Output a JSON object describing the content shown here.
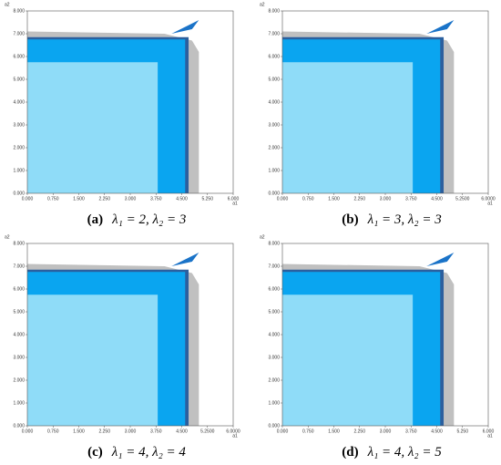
{
  "chart_data": [
    {
      "type": "region",
      "caption_label": "(a)",
      "caption": "λ₁ = 2, λ₂ = 3",
      "xlabel": "a1",
      "ylabel": "a2",
      "xlim": [
        0,
        6
      ],
      "ylim": [
        0,
        8
      ],
      "xticks": [
        {
          "value": 0,
          "label": "0.000"
        },
        {
          "value": 0.75,
          "label": "0.750"
        },
        {
          "value": 1.5,
          "label": "1.500"
        },
        {
          "value": 2.25,
          "label": "2.250"
        },
        {
          "value": 3,
          "label": "3.000"
        },
        {
          "value": 3.75,
          "label": "3.750"
        },
        {
          "value": 4.5,
          "label": "4.500"
        },
        {
          "value": 5.25,
          "label": "5.250"
        },
        {
          "value": 6,
          "label": "6.000"
        }
      ],
      "yticks": [
        {
          "value": 0,
          "label": "0.000"
        },
        {
          "value": 1,
          "label": "1.000"
        },
        {
          "value": 2,
          "label": "2.000"
        },
        {
          "value": 3,
          "label": "3.000"
        },
        {
          "value": 4,
          "label": "4.000"
        },
        {
          "value": 5,
          "label": "5.000"
        },
        {
          "value": 6,
          "label": "6.000"
        },
        {
          "value": 7,
          "label": "7.000"
        },
        {
          "value": 8,
          "label": "8.000"
        }
      ],
      "regions": [
        {
          "color": "#c0c0c0",
          "x": [
            0,
            0,
            4.0,
            4.8,
            5.0,
            5.0
          ],
          "y": [
            0,
            7.1,
            7.0,
            6.7,
            6.2,
            0
          ]
        },
        {
          "color": "#2b5f9e",
          "x": [
            0,
            0,
            4.7,
            4.7
          ],
          "y": [
            0,
            6.85,
            6.85,
            0
          ]
        },
        {
          "color": "#0aa5f0",
          "x": [
            0,
            0,
            4.6,
            4.6
          ],
          "y": [
            0,
            6.75,
            6.75,
            0
          ]
        },
        {
          "color": "#8fdcf8",
          "x": [
            0,
            0,
            3.8,
            3.8
          ],
          "y": [
            0,
            5.75,
            5.75,
            0
          ]
        },
        {
          "color": "#1a73c8",
          "x": [
            4.2,
            4.8,
            5.0,
            4.6
          ],
          "y": [
            7.0,
            7.2,
            7.6,
            7.3
          ]
        }
      ]
    },
    {
      "type": "region",
      "caption_label": "(b)",
      "caption": "λ₁ = 3, λ₂ = 3",
      "xlabel": "a1",
      "ylabel": "a2",
      "xlim": [
        0,
        6
      ],
      "ylim": [
        0,
        8
      ],
      "xticks": [
        {
          "value": 0,
          "label": "0.000"
        },
        {
          "value": 0.75,
          "label": "0.750"
        },
        {
          "value": 1.5,
          "label": "1.500"
        },
        {
          "value": 2.25,
          "label": "2.250"
        },
        {
          "value": 3,
          "label": "3.000"
        },
        {
          "value": 3.75,
          "label": "3.750"
        },
        {
          "value": 4.5,
          "label": "4.500"
        },
        {
          "value": 5.25,
          "label": "5.2500"
        },
        {
          "value": 6,
          "label": "6.0000"
        }
      ],
      "yticks": [
        {
          "value": 0,
          "label": "0.000"
        },
        {
          "value": 1,
          "label": "1.000"
        },
        {
          "value": 2,
          "label": "2.000"
        },
        {
          "value": 3,
          "label": "3.000"
        },
        {
          "value": 4,
          "label": "4.000"
        },
        {
          "value": 5,
          "label": "5.000"
        },
        {
          "value": 6,
          "label": "6.000"
        },
        {
          "value": 7,
          "label": "7.000"
        },
        {
          "value": 8,
          "label": "8.000"
        }
      ],
      "regions": [
        {
          "color": "#c0c0c0",
          "x": [
            0,
            0,
            4.0,
            4.8,
            5.0,
            5.0
          ],
          "y": [
            0,
            7.1,
            7.0,
            6.7,
            6.2,
            0
          ]
        },
        {
          "color": "#2b5f9e",
          "x": [
            0,
            0,
            4.7,
            4.7
          ],
          "y": [
            0,
            6.85,
            6.85,
            0
          ]
        },
        {
          "color": "#0aa5f0",
          "x": [
            0,
            0,
            4.6,
            4.6
          ],
          "y": [
            0,
            6.75,
            6.75,
            0
          ]
        },
        {
          "color": "#8fdcf8",
          "x": [
            0,
            0,
            3.8,
            3.8
          ],
          "y": [
            0,
            5.75,
            5.75,
            0
          ]
        },
        {
          "color": "#1a73c8",
          "x": [
            4.2,
            4.8,
            5.0,
            4.6
          ],
          "y": [
            7.0,
            7.2,
            7.6,
            7.3
          ]
        }
      ]
    },
    {
      "type": "region",
      "caption_label": "(c)",
      "caption": "λ₁ = 4, λ₂ = 4",
      "xlabel": "a1",
      "ylabel": "a2",
      "xlim": [
        0,
        6
      ],
      "ylim": [
        0,
        8
      ],
      "xticks": [
        {
          "value": 0,
          "label": "0.000"
        },
        {
          "value": 0.75,
          "label": "0.750"
        },
        {
          "value": 1.5,
          "label": "1.500"
        },
        {
          "value": 2.25,
          "label": "2.250"
        },
        {
          "value": 3,
          "label": "3.000"
        },
        {
          "value": 3.75,
          "label": "3.750"
        },
        {
          "value": 4.5,
          "label": "4.500"
        },
        {
          "value": 5.25,
          "label": "5.2500"
        },
        {
          "value": 6,
          "label": "6.0000"
        }
      ],
      "yticks": [
        {
          "value": 0,
          "label": "0.000"
        },
        {
          "value": 1,
          "label": "1.000"
        },
        {
          "value": 2,
          "label": "2.000"
        },
        {
          "value": 3,
          "label": "3.000"
        },
        {
          "value": 4,
          "label": "4.000"
        },
        {
          "value": 5,
          "label": "5.000"
        },
        {
          "value": 6,
          "label": "6.000"
        },
        {
          "value": 7,
          "label": "7.000"
        },
        {
          "value": 8,
          "label": "8.000"
        }
      ],
      "regions": [
        {
          "color": "#c0c0c0",
          "x": [
            0,
            0,
            4.0,
            4.8,
            5.0,
            5.0
          ],
          "y": [
            0,
            7.1,
            7.0,
            6.7,
            6.2,
            0
          ]
        },
        {
          "color": "#2b5f9e",
          "x": [
            0,
            0,
            4.7,
            4.7
          ],
          "y": [
            0,
            6.85,
            6.85,
            0
          ]
        },
        {
          "color": "#0aa5f0",
          "x": [
            0,
            0,
            4.6,
            4.6
          ],
          "y": [
            0,
            6.75,
            6.75,
            0
          ]
        },
        {
          "color": "#8fdcf8",
          "x": [
            0,
            0,
            3.8,
            3.8
          ],
          "y": [
            0,
            5.75,
            5.75,
            0
          ]
        },
        {
          "color": "#1a73c8",
          "x": [
            4.2,
            4.8,
            5.0,
            4.6
          ],
          "y": [
            7.0,
            7.2,
            7.6,
            7.3
          ]
        }
      ]
    },
    {
      "type": "region",
      "caption_label": "(d)",
      "caption": "λ₁ = 4, λ₂ = 5",
      "xlabel": "a1",
      "ylabel": "a2",
      "xlim": [
        0,
        6
      ],
      "ylim": [
        0,
        8
      ],
      "xticks": [
        {
          "value": 0,
          "label": "0.000"
        },
        {
          "value": 0.75,
          "label": "0.750"
        },
        {
          "value": 1.5,
          "label": "1.500"
        },
        {
          "value": 2.25,
          "label": "2.250"
        },
        {
          "value": 3,
          "label": "3.000"
        },
        {
          "value": 3.75,
          "label": "3.750"
        },
        {
          "value": 4.5,
          "label": "4.500"
        },
        {
          "value": 5.25,
          "label": "5.250"
        },
        {
          "value": 6,
          "label": "6.000"
        }
      ],
      "yticks": [
        {
          "value": 0,
          "label": "0.000"
        },
        {
          "value": 1,
          "label": "1.000"
        },
        {
          "value": 2,
          "label": "2.000"
        },
        {
          "value": 3,
          "label": "3.000"
        },
        {
          "value": 4,
          "label": "4.000"
        },
        {
          "value": 5,
          "label": "5.000"
        },
        {
          "value": 6,
          "label": "6.000"
        },
        {
          "value": 7,
          "label": "7.000"
        },
        {
          "value": 8,
          "label": "8.000"
        }
      ],
      "regions": [
        {
          "color": "#c0c0c0",
          "x": [
            0,
            0,
            4.0,
            4.8,
            5.0,
            5.0
          ],
          "y": [
            0,
            7.1,
            7.0,
            6.7,
            6.2,
            0
          ]
        },
        {
          "color": "#2b5f9e",
          "x": [
            0,
            0,
            4.7,
            4.7
          ],
          "y": [
            0,
            6.85,
            6.85,
            0
          ]
        },
        {
          "color": "#0aa5f0",
          "x": [
            0,
            0,
            4.6,
            4.6
          ],
          "y": [
            0,
            6.75,
            6.75,
            0
          ]
        },
        {
          "color": "#8fdcf8",
          "x": [
            0,
            0,
            3.8,
            3.8
          ],
          "y": [
            0,
            5.75,
            5.75,
            0
          ]
        },
        {
          "color": "#1a73c8",
          "x": [
            4.2,
            4.8,
            5.0,
            4.6
          ],
          "y": [
            7.0,
            7.2,
            7.6,
            7.3
          ]
        }
      ]
    }
  ]
}
